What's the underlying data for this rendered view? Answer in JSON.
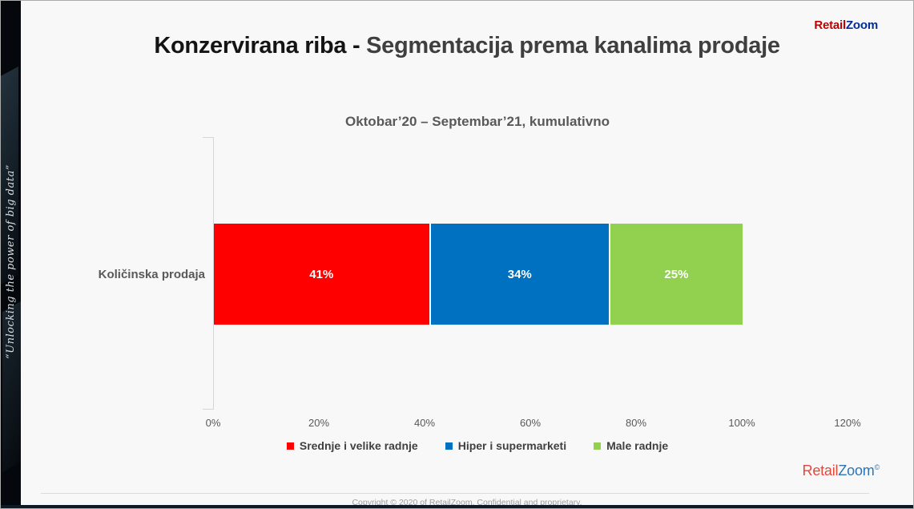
{
  "header": {
    "title_primary": "Konzervirana riba - ",
    "title_secondary": "Segmentacija prema kanalima prodaje",
    "logo_retail": "Retail",
    "logo_zoom": "Zoom"
  },
  "sidebar": {
    "tagline": "“Unlocking the power of big data”"
  },
  "chart": {
    "subtitle": "Oktobar’20 – Septembar’21, kumulativno",
    "category_label": "Količinska prodaja"
  },
  "chart_data": {
    "type": "bar",
    "orientation": "horizontal-stacked",
    "title": "Oktobar’20 – Septembar’21, kumulativno",
    "categories": [
      "Količinska prodaja"
    ],
    "series": [
      {
        "name": "Srednje i velike radnje",
        "values": [
          41
        ],
        "color": "#ff0000"
      },
      {
        "name": "Hiper i supermarketi",
        "values": [
          34
        ],
        "color": "#0070c0"
      },
      {
        "name": "Male radnje",
        "values": [
          25
        ],
        "color": "#92d050"
      }
    ],
    "value_labels": [
      "41%",
      "34%",
      "25%"
    ],
    "x_ticks": [
      "0%",
      "20%",
      "40%",
      "60%",
      "80%",
      "100%",
      "120%"
    ],
    "x_tick_values": [
      0,
      20,
      40,
      60,
      80,
      100,
      120
    ],
    "xlim": [
      0,
      130
    ],
    "grid": false,
    "legend_position": "bottom"
  },
  "footer": {
    "logo_retail": "Retail",
    "logo_zoom": "Zoom",
    "logo_mark": "©",
    "copyright": "Copyright © 2020 of RetailZoom. Confidential and proprietary."
  },
  "colors": {
    "segment_red": "#ff0000",
    "segment_blue": "#0070c0",
    "segment_green": "#92d050",
    "title_primary": "#141414",
    "title_secondary": "#3f3f3f",
    "text_gray": "#595959",
    "logo_red": "#c00000",
    "logo_navy": "#002d9b",
    "footer_logo_red": "#e4483a",
    "footer_logo_blue": "#2e74b5"
  }
}
